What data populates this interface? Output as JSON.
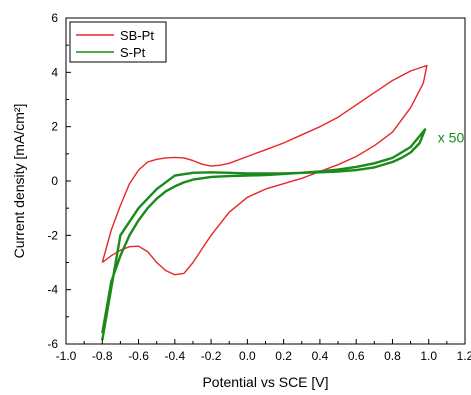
{
  "chart_data": {
    "type": "line",
    "xlabel": "Potential vs SCE [V]",
    "ylabel": "Current density [mA/cm²]",
    "xlim": [
      -1.0,
      1.2
    ],
    "ylim": [
      -6,
      6
    ],
    "xticks": [
      "-1.0",
      "-0.8",
      "-0.6",
      "-0.4",
      "-0.2",
      "0.0",
      "0.2",
      "0.4",
      "0.6",
      "0.8",
      "1.0",
      "1.2"
    ],
    "yticks": [
      "-6",
      "-4",
      "-2",
      "0",
      "2",
      "4",
      "6"
    ],
    "legend_position": "top-left",
    "annotation": "x 50",
    "series": [
      {
        "name": "SB-Pt",
        "color": "#e8262a",
        "x": [
          -0.8,
          -0.75,
          -0.7,
          -0.65,
          -0.6,
          -0.55,
          -0.5,
          -0.45,
          -0.4,
          -0.35,
          -0.3,
          -0.25,
          -0.2,
          -0.15,
          -0.1,
          0.0,
          0.1,
          0.2,
          0.3,
          0.4,
          0.5,
          0.6,
          0.7,
          0.8,
          0.9,
          0.99,
          0.97,
          0.9,
          0.8,
          0.7,
          0.6,
          0.5,
          0.4,
          0.3,
          0.2,
          0.1,
          0.0,
          -0.1,
          -0.2,
          -0.25,
          -0.3,
          -0.35,
          -0.4,
          -0.45,
          -0.5,
          -0.55,
          -0.6,
          -0.65,
          -0.7,
          -0.75,
          -0.8
        ],
        "y": [
          -3.0,
          -1.8,
          -0.9,
          -0.1,
          0.4,
          0.7,
          0.8,
          0.85,
          0.87,
          0.85,
          0.75,
          0.62,
          0.55,
          0.58,
          0.65,
          0.9,
          1.15,
          1.4,
          1.7,
          2.0,
          2.35,
          2.8,
          3.25,
          3.7,
          4.05,
          4.25,
          3.6,
          2.7,
          1.8,
          1.3,
          0.9,
          0.6,
          0.35,
          0.1,
          -0.1,
          -0.3,
          -0.6,
          -1.15,
          -2.0,
          -2.5,
          -3.0,
          -3.4,
          -3.45,
          -3.3,
          -3.0,
          -2.6,
          -2.4,
          -2.42,
          -2.55,
          -2.75,
          -3.0
        ]
      },
      {
        "name": "S-Pt",
        "color": "#1a8a1a",
        "x": [
          -0.8,
          -0.75,
          -0.7,
          -0.65,
          -0.6,
          -0.55,
          -0.5,
          -0.45,
          -0.4,
          -0.35,
          -0.3,
          -0.25,
          -0.2,
          -0.1,
          0.0,
          0.1,
          0.2,
          0.3,
          0.4,
          0.5,
          0.6,
          0.7,
          0.8,
          0.9,
          0.98,
          0.95,
          0.9,
          0.85,
          0.8,
          0.7,
          0.6,
          0.5,
          0.4,
          0.3,
          0.2,
          0.1,
          0.0,
          -0.1,
          -0.2,
          -0.3,
          -0.4,
          -0.5,
          -0.6,
          -0.7,
          -0.8
        ],
        "y": [
          -5.6,
          -3.7,
          -2.75,
          -2.0,
          -1.45,
          -1.0,
          -0.65,
          -0.38,
          -0.2,
          -0.05,
          0.05,
          0.1,
          0.15,
          0.18,
          0.2,
          0.22,
          0.26,
          0.3,
          0.35,
          0.42,
          0.52,
          0.65,
          0.85,
          1.25,
          1.9,
          1.4,
          1.05,
          0.85,
          0.7,
          0.5,
          0.4,
          0.35,
          0.32,
          0.3,
          0.28,
          0.28,
          0.28,
          0.3,
          0.32,
          0.3,
          0.2,
          -0.3,
          -1.0,
          -2.0,
          -5.85
        ]
      }
    ]
  }
}
